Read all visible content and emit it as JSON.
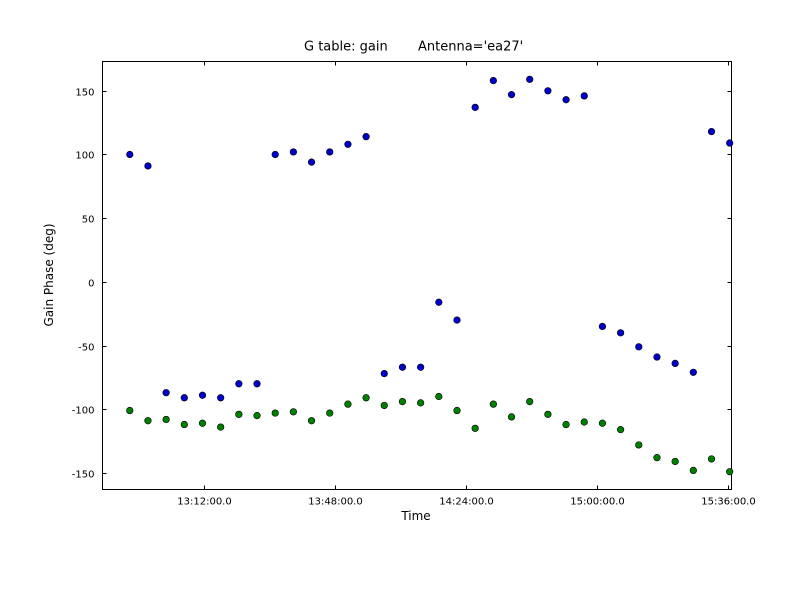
{
  "chart_data": {
    "type": "scatter",
    "title": "G table: gain",
    "subtitle": "Antenna='ea27'",
    "xlabel": "Time",
    "ylabel": "Gain Phase (deg)",
    "xlim": [
      "12:44:00",
      "15:37:00"
    ],
    "ylim": [
      -163,
      173
    ],
    "grid": false,
    "x_ticks": [
      "13:12:00.0",
      "13:48:00.0",
      "14:24:00.0",
      "15:00:00.0",
      "15:36:00.0"
    ],
    "y_ticks": [
      150,
      100,
      50,
      0,
      -50,
      -100,
      -150
    ],
    "colors": {
      "series1": "#0000cc",
      "series2": "#008000"
    },
    "series": [
      {
        "name": "",
        "color": "#0000cc",
        "points": [
          [
            "12:51:30",
            100
          ],
          [
            "12:56:30",
            91
          ],
          [
            "13:01:30",
            -87
          ],
          [
            "13:06:30",
            -91
          ],
          [
            "13:11:30",
            -89
          ],
          [
            "13:16:30",
            -91
          ],
          [
            "13:21:30",
            -80
          ],
          [
            "13:26:30",
            -80
          ],
          [
            "13:31:30",
            100
          ],
          [
            "13:36:30",
            102
          ],
          [
            "13:41:30",
            94
          ],
          [
            "13:46:30",
            102
          ],
          [
            "13:51:30",
            108
          ],
          [
            "13:56:30",
            114
          ],
          [
            "14:01:30",
            -72
          ],
          [
            "14:06:30",
            -67
          ],
          [
            "14:11:30",
            -67
          ],
          [
            "14:16:30",
            -16
          ],
          [
            "14:21:30",
            -30
          ],
          [
            "14:26:30",
            137
          ],
          [
            "14:31:30",
            158
          ],
          [
            "14:36:30",
            147
          ],
          [
            "14:41:30",
            159
          ],
          [
            "14:46:30",
            150
          ],
          [
            "14:51:30",
            143
          ],
          [
            "14:56:30",
            146
          ],
          [
            "15:01:30",
            -35
          ],
          [
            "15:06:30",
            -40
          ],
          [
            "15:11:30",
            -51
          ],
          [
            "15:16:30",
            -59
          ],
          [
            "15:21:30",
            -64
          ],
          [
            "15:26:30",
            -71
          ],
          [
            "15:31:30",
            118
          ],
          [
            "15:36:30",
            109
          ]
        ]
      },
      {
        "name": "",
        "color": "#008000",
        "points": [
          [
            "12:51:30",
            -101
          ],
          [
            "12:56:30",
            -109
          ],
          [
            "13:01:30",
            -108
          ],
          [
            "13:06:30",
            -112
          ],
          [
            "13:11:30",
            -111
          ],
          [
            "13:16:30",
            -114
          ],
          [
            "13:21:30",
            -104
          ],
          [
            "13:26:30",
            -105
          ],
          [
            "13:31:30",
            -103
          ],
          [
            "13:36:30",
            -102
          ],
          [
            "13:41:30",
            -109
          ],
          [
            "13:46:30",
            -103
          ],
          [
            "13:51:30",
            -96
          ],
          [
            "13:56:30",
            -91
          ],
          [
            "14:01:30",
            -97
          ],
          [
            "14:06:30",
            -94
          ],
          [
            "14:11:30",
            -95
          ],
          [
            "14:16:30",
            -90
          ],
          [
            "14:21:30",
            -101
          ],
          [
            "14:26:30",
            -115
          ],
          [
            "14:31:30",
            -96
          ],
          [
            "14:36:30",
            -106
          ],
          [
            "14:41:30",
            -94
          ],
          [
            "14:46:30",
            -104
          ],
          [
            "14:51:30",
            -112
          ],
          [
            "14:56:30",
            -110
          ],
          [
            "15:01:30",
            -111
          ],
          [
            "15:06:30",
            -116
          ],
          [
            "15:11:30",
            -128
          ],
          [
            "15:16:30",
            -138
          ],
          [
            "15:21:30",
            -141
          ],
          [
            "15:26:30",
            -148
          ],
          [
            "15:31:30",
            -139
          ],
          [
            "15:36:30",
            -149
          ]
        ]
      }
    ]
  }
}
